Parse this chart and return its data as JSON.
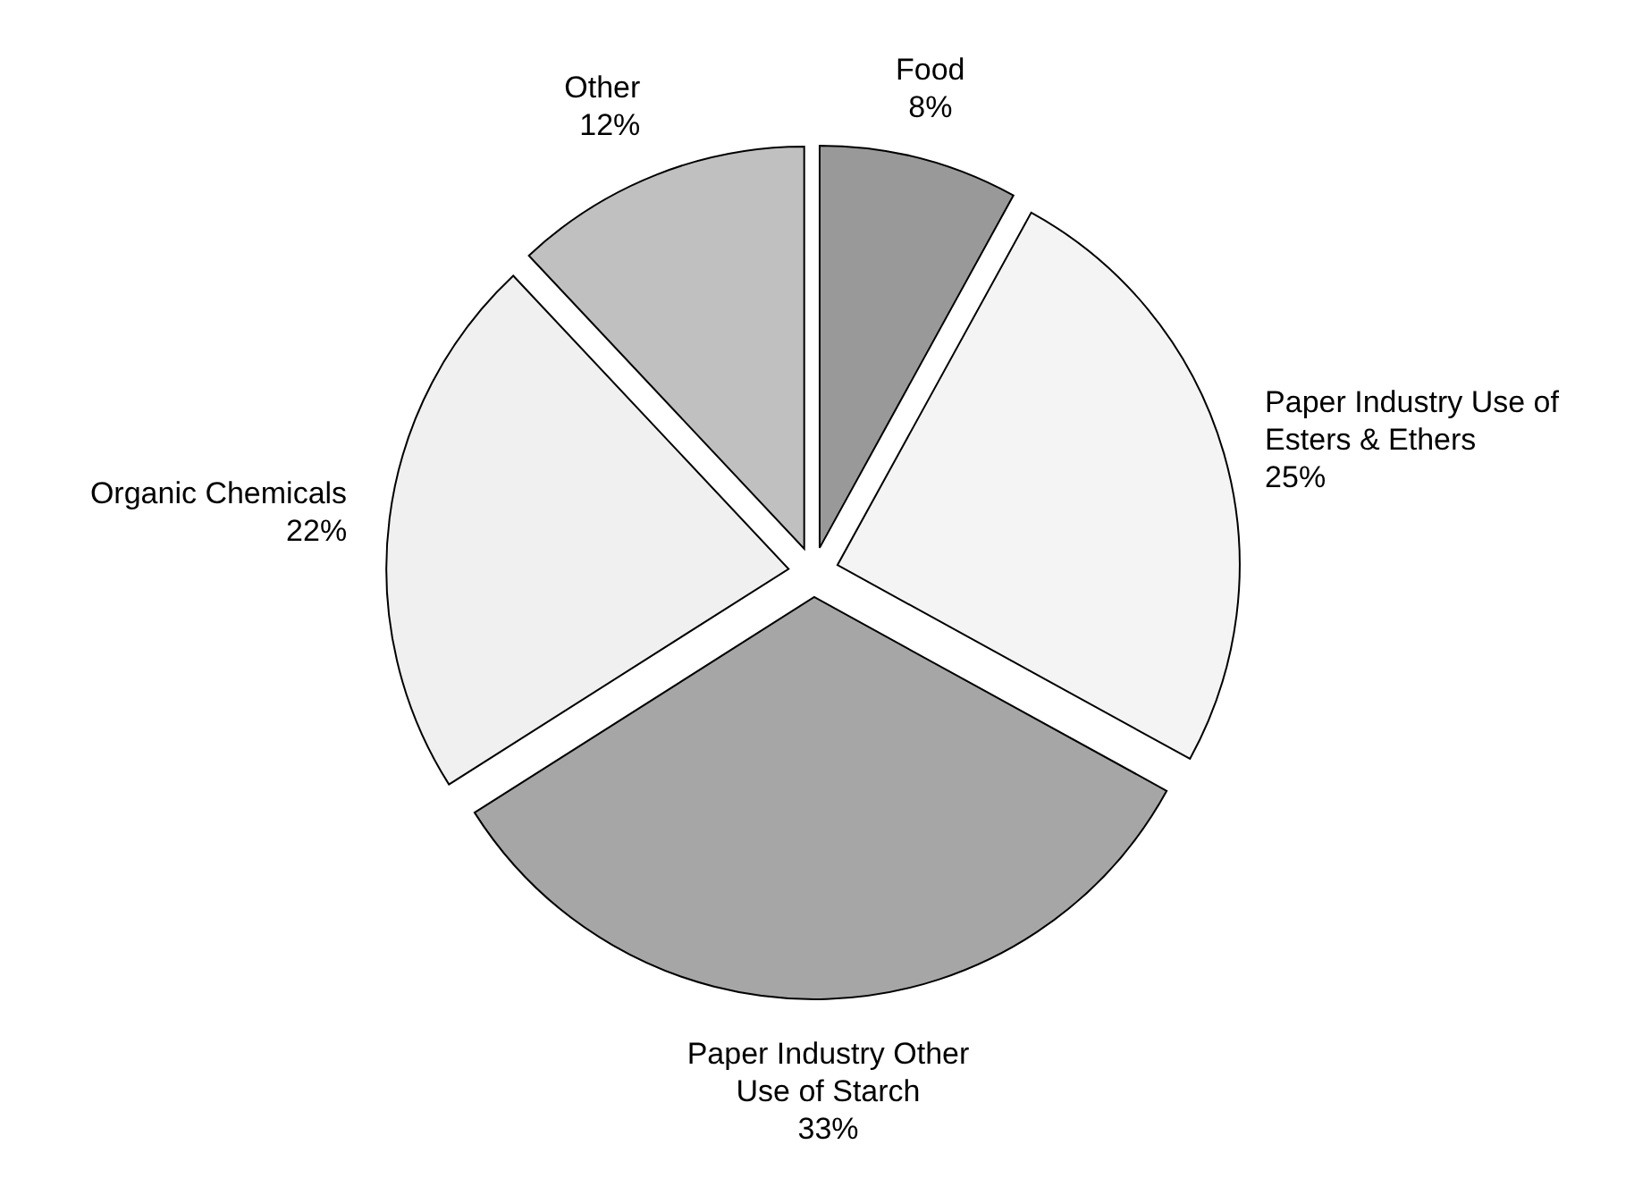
{
  "chart_data": {
    "type": "pie",
    "categories": [
      "Food",
      "Paper Industry Use of Esters & Ethers",
      "Paper Industry Other Use of Starch",
      "Organic Chemicals",
      "Other"
    ],
    "values": [
      8,
      25,
      33,
      22,
      12
    ],
    "value_labels": [
      "8%",
      "25%",
      "33%",
      "22%",
      "12%"
    ],
    "colors": [
      "#999999",
      "#f4f4f4",
      "#a6a6a6",
      "#f0f0f0",
      "#c0c0c0"
    ],
    "legend": false
  }
}
